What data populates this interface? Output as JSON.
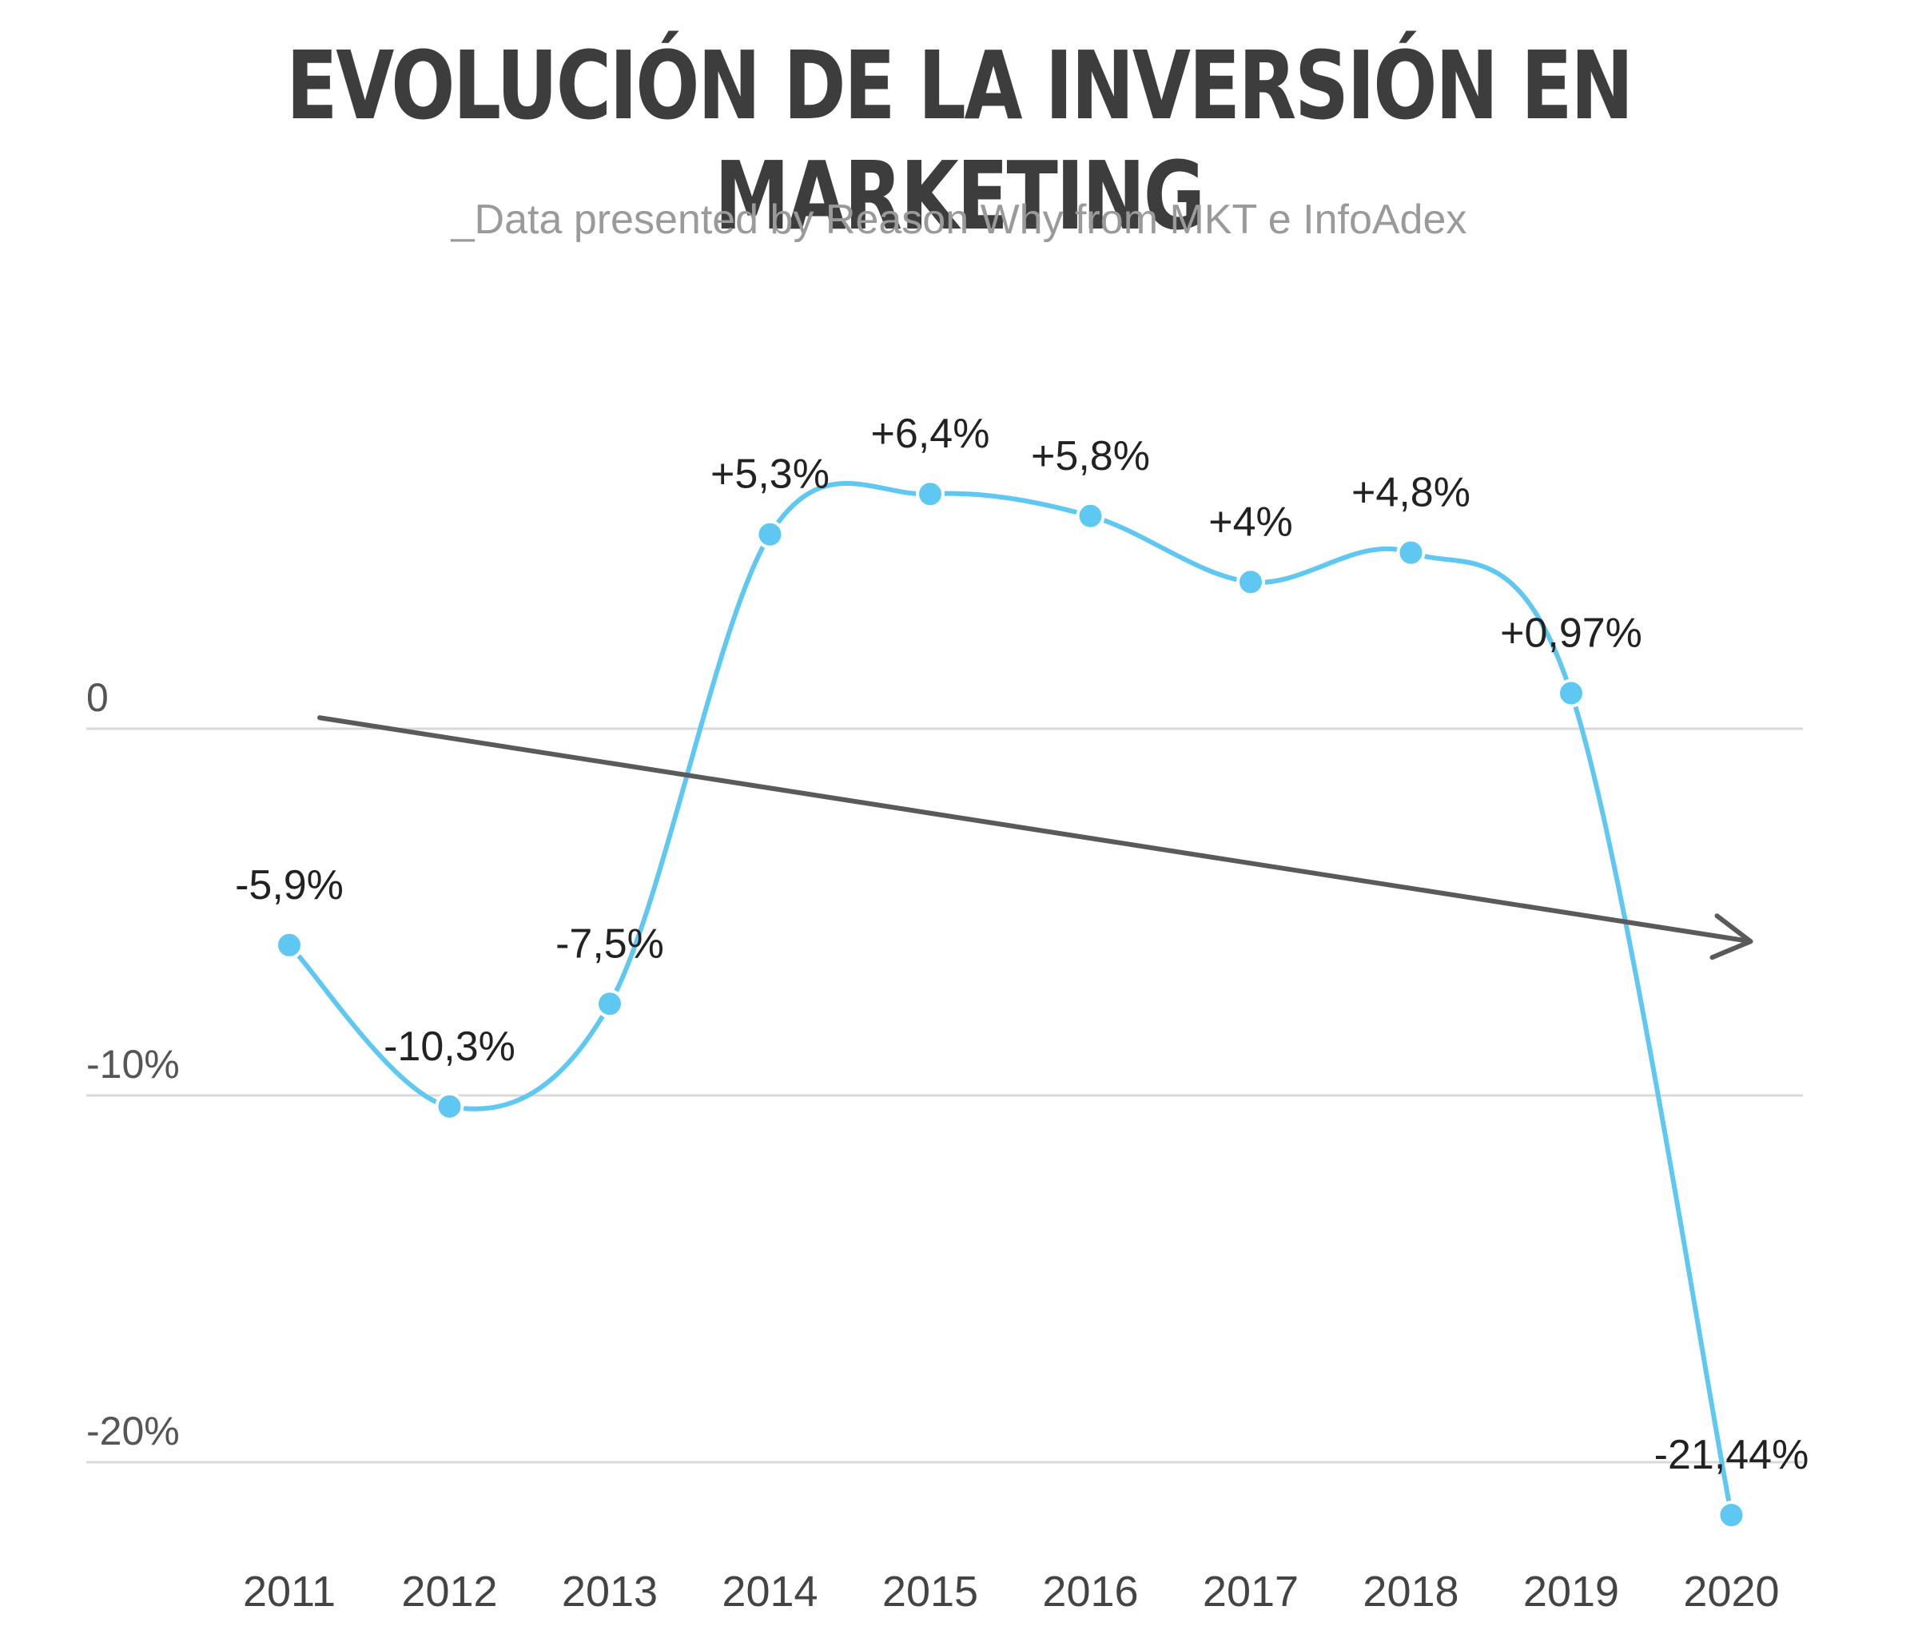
{
  "title": "EVOLUCIÓN DE LA INVERSIÓN EN MARKETING",
  "subtitle": "_Data presented by Reason Why from MKT e InfoAdex",
  "colors": {
    "line": "#5ec8f2",
    "trend_arrow": "#5a5a5a",
    "gridline": "#d9d9d9",
    "title": "#3d3d3d"
  },
  "chart_data": {
    "type": "line",
    "x": [
      "2011",
      "2012",
      "2013",
      "2014",
      "2015",
      "2016",
      "2017",
      "2018",
      "2019",
      "2020"
    ],
    "values": [
      -5.9,
      -10.3,
      -7.5,
      5.3,
      6.4,
      5.8,
      4,
      4.8,
      0.97,
      -21.44
    ],
    "data_labels": [
      "-5,9%",
      "-10,3%",
      "-7,5%",
      "+5,3%",
      "+6,4%",
      "+5,8%",
      "+4%",
      "+4,8%",
      "+0,97%",
      "-21,44%"
    ],
    "y_ticks": [
      0,
      -10,
      -20
    ],
    "y_tick_labels": [
      "0",
      "-10%",
      "-20%"
    ],
    "ylim": [
      -22,
      8
    ],
    "grid": true,
    "smooth": true,
    "trend_arrow": {
      "from": [
        "2011",
        0.3
      ],
      "to": [
        "2020",
        -5.8
      ],
      "direction": "downward"
    }
  }
}
